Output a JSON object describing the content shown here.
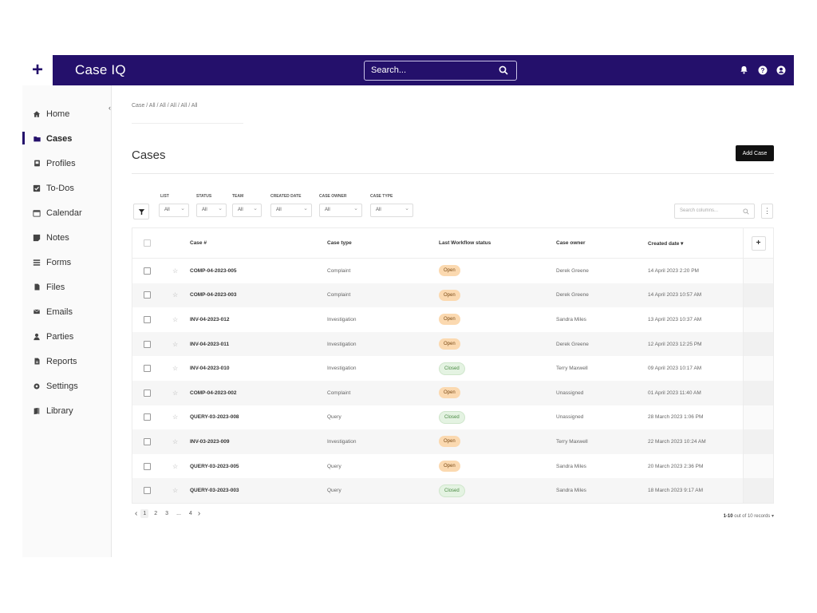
{
  "app": {
    "brand": "Case IQ",
    "search_placeholder": "Search...",
    "add_symbol": "+"
  },
  "sidebar": {
    "collapse_symbol": "‹",
    "items": [
      {
        "label": "Home",
        "icon": "home-icon",
        "active": false
      },
      {
        "label": "Cases",
        "icon": "folder-icon",
        "active": true
      },
      {
        "label": "Profiles",
        "icon": "profile-icon",
        "active": false
      },
      {
        "label": "To-Dos",
        "icon": "checkbox-icon",
        "active": false
      },
      {
        "label": "Calendar",
        "icon": "calendar-icon",
        "active": false
      },
      {
        "label": "Notes",
        "icon": "notes-icon",
        "active": false
      },
      {
        "label": "Forms",
        "icon": "forms-icon",
        "active": false
      },
      {
        "label": "Files",
        "icon": "file-icon",
        "active": false
      },
      {
        "label": "Emails",
        "icon": "email-icon",
        "active": false
      },
      {
        "label": "Parties",
        "icon": "person-icon",
        "active": false
      },
      {
        "label": "Reports",
        "icon": "report-icon",
        "active": false
      },
      {
        "label": "Settings",
        "icon": "gear-icon",
        "active": false
      },
      {
        "label": "Library",
        "icon": "book-icon",
        "active": false
      }
    ]
  },
  "main": {
    "breadcrumb": "Case / All / All / All / All / All",
    "title": "Cases",
    "add_button": "Add Case",
    "column_search_placeholder": "Search columns...",
    "kebab": "⋮",
    "filters": [
      {
        "label": "LIST",
        "value": "All"
      },
      {
        "label": "STATUS",
        "value": "All"
      },
      {
        "label": "TEAM",
        "value": "All"
      },
      {
        "label": "CREATED DATE",
        "value": "All"
      },
      {
        "label": "CASE OWNER",
        "value": "All"
      },
      {
        "label": "CASE TYPE",
        "value": "All"
      }
    ]
  },
  "table": {
    "headers": {
      "case": "Case #",
      "type": "Case type",
      "status": "Last Workflow status",
      "owner": "Case owner",
      "date": "Created date ▾",
      "add_column": "+"
    },
    "rows": [
      {
        "case": "COMP-04-2023-005",
        "type": "Complaint",
        "status": "Open",
        "owner": "Derek Greene",
        "date": "14 April 2023 2:20 PM"
      },
      {
        "case": "COMP-04-2023-003",
        "type": "Complaint",
        "status": "Open",
        "owner": "Derek Greene",
        "date": "14 April 2023 10:57 AM"
      },
      {
        "case": "INV-04-2023-012",
        "type": "Investigation",
        "status": "Open",
        "owner": "Sandra Miles",
        "date": "13 April 2023 10:37 AM"
      },
      {
        "case": "INV-04-2023-011",
        "type": "Investigation",
        "status": "Open",
        "owner": "Derek Greene",
        "date": "12 April 2023 12:25 PM"
      },
      {
        "case": "INV-04-2023-010",
        "type": "Investigation",
        "status": "Closed",
        "owner": "Terry Maxwell",
        "date": "09 April 2023 10:17 AM"
      },
      {
        "case": "COMP-04-2023-002",
        "type": "Complaint",
        "status": "Open",
        "owner": "Unassigned",
        "date": "01 April 2023 11:40 AM"
      },
      {
        "case": "QUERY-03-2023-008",
        "type": "Query",
        "status": "Closed",
        "owner": "Unassigned",
        "date": "28 March 2023 1:06 PM"
      },
      {
        "case": "INV-03-2023-009",
        "type": "Investigation",
        "status": "Open",
        "owner": "Terry Maxwell",
        "date": "22 March 2023 10:24 AM"
      },
      {
        "case": "QUERY-03-2023-005",
        "type": "Query",
        "status": "Open",
        "owner": "Sandra Miles",
        "date": "20 March 2023 2:36 PM"
      },
      {
        "case": "QUERY-03-2023-003",
        "type": "Query",
        "status": "Closed",
        "owner": "Sandra Miles",
        "date": "18 March 2023 9:17 AM"
      }
    ]
  },
  "pagination": {
    "prev": "‹",
    "next": "›",
    "pages": [
      "1",
      "2",
      "3",
      "...",
      "4"
    ],
    "current": "1",
    "records_range": "1-10",
    "records_text": "out of 10 records ▾"
  },
  "colors": {
    "brand": "#24106b",
    "open_badge": "#fbd9b0",
    "closed_badge": "#e4f3e2"
  }
}
